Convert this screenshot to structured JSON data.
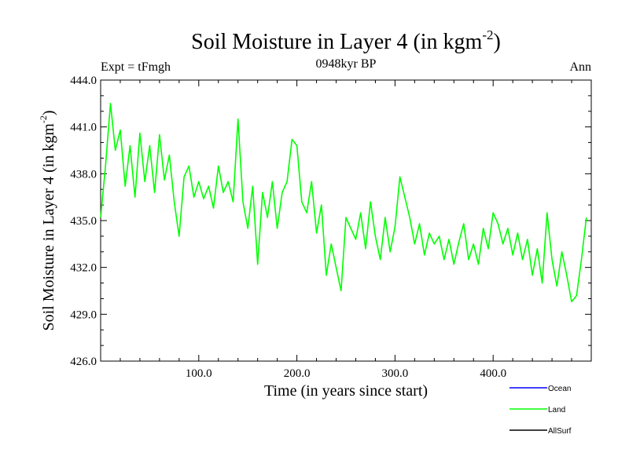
{
  "chart_data": {
    "type": "line",
    "title": "Soil Moisture in Layer 4 (in kgm",
    "title_sup": "-2",
    "title_close": ")",
    "subtitle_left": "Expt = tFmgh",
    "subtitle_center": "0948kyr BP",
    "subtitle_right": "Ann",
    "xlabel": "Time (in years since start)",
    "ylabel": "Soil Moisture in Layer 4 (in kgm",
    "ylabel_sup": "-2",
    "ylabel_close": ")",
    "xlim": [
      0,
      500
    ],
    "ylim": [
      426.0,
      444.0
    ],
    "xticks": [
      100,
      200,
      300,
      400
    ],
    "xtick_labels": [
      "100.0",
      "200.0",
      "300.0",
      "400.0"
    ],
    "yticks": [
      426,
      429,
      432,
      435,
      438,
      441,
      444
    ],
    "ytick_labels": [
      "426.0",
      "429.0",
      "432.0",
      "435.0",
      "438.0",
      "441.0",
      "444.0"
    ],
    "legend": [
      {
        "name": "Ocean",
        "color": "#0000ff"
      },
      {
        "name": "Land",
        "color": "#00ff00"
      },
      {
        "name": "AllSurf",
        "color": "#000000"
      }
    ],
    "series": [
      {
        "name": "Land",
        "color": "#00ff00",
        "x": [
          0,
          5,
          10,
          15,
          20,
          25,
          30,
          35,
          40,
          45,
          50,
          55,
          60,
          65,
          70,
          75,
          80,
          85,
          90,
          95,
          100,
          105,
          110,
          115,
          120,
          125,
          130,
          135,
          140,
          145,
          150,
          155,
          160,
          165,
          170,
          175,
          180,
          185,
          190,
          195,
          200,
          205,
          210,
          215,
          220,
          225,
          230,
          235,
          240,
          245,
          250,
          255,
          260,
          265,
          270,
          275,
          280,
          285,
          290,
          295,
          300,
          305,
          310,
          315,
          320,
          325,
          330,
          335,
          340,
          345,
          350,
          355,
          360,
          365,
          370,
          375,
          380,
          385,
          390,
          395,
          400,
          405,
          410,
          415,
          420,
          425,
          430,
          435,
          440,
          445,
          450,
          455,
          460,
          465,
          470,
          475,
          480,
          485,
          490,
          495
        ],
        "values": [
          435.2,
          438.5,
          442.5,
          439.5,
          440.8,
          437.2,
          439.8,
          436.5,
          440.6,
          437.5,
          439.8,
          436.8,
          440.5,
          437.6,
          439.2,
          436.2,
          434.0,
          437.8,
          438.5,
          436.5,
          437.5,
          436.4,
          437.2,
          435.8,
          438.5,
          436.8,
          437.5,
          436.2,
          441.5,
          436.2,
          434.5,
          437.2,
          432.2,
          436.8,
          435.2,
          437.5,
          434.5,
          436.8,
          437.5,
          440.2,
          439.8,
          436.2,
          435.5,
          437.5,
          434.2,
          436.0,
          431.5,
          433.5,
          432.0,
          430.5,
          435.2,
          434.5,
          433.8,
          435.5,
          433.2,
          436.2,
          434.0,
          432.5,
          435.2,
          433.0,
          434.6,
          437.8,
          436.5,
          435.2,
          433.5,
          434.8,
          432.8,
          434.2,
          433.5,
          434.0,
          432.5,
          433.8,
          432.2,
          433.6,
          434.8,
          432.5,
          433.5,
          432.2,
          434.5,
          433.2,
          435.5,
          434.8,
          433.5,
          434.5,
          432.8,
          434.2,
          432.5,
          433.8,
          431.5,
          433.2,
          431.0,
          435.5,
          432.5,
          430.8,
          433.0,
          431.5,
          429.8,
          430.2,
          432.5,
          435.2
        ]
      }
    ]
  }
}
